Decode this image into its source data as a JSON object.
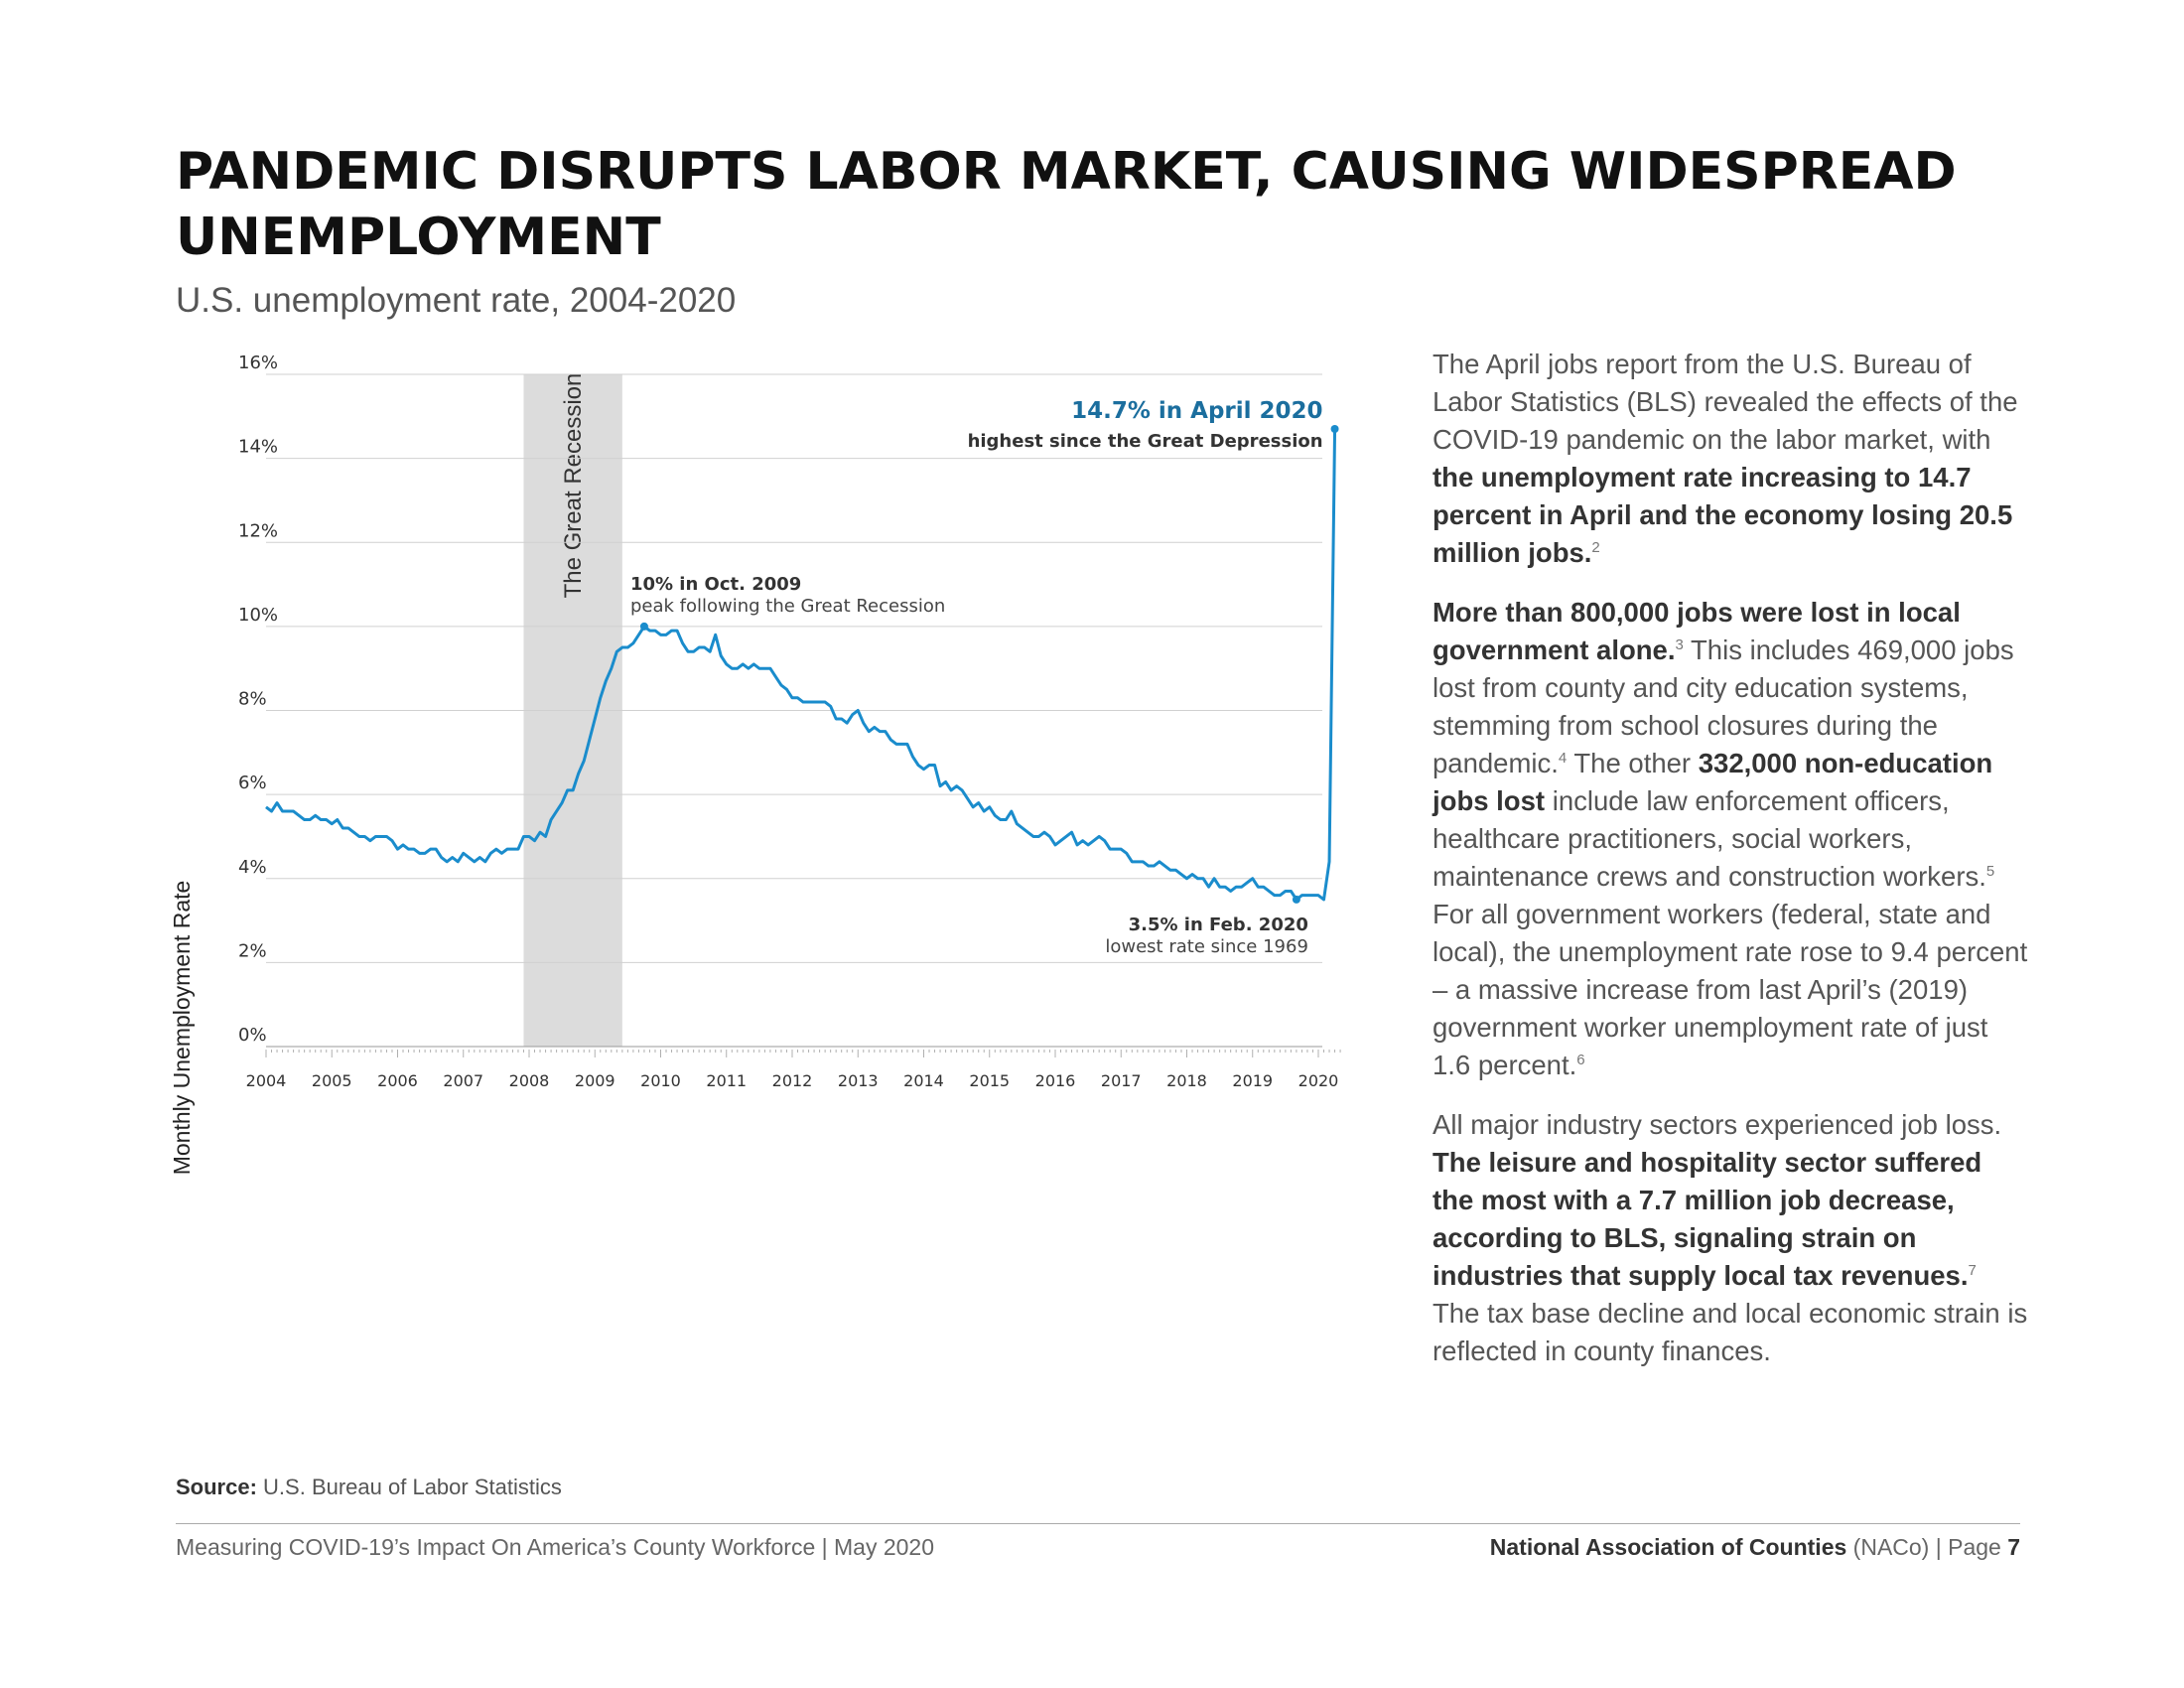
{
  "header": {
    "title": "PANDEMIC DISRUPTS LABOR MARKET, CAUSING WIDESPREAD UNEMPLOYMENT",
    "subtitle": "U.S. unemployment rate, 2004-2020"
  },
  "chart_data": {
    "type": "line",
    "title": "U.S. unemployment rate, 2004-2020",
    "ylabel": "Monthly Unemployment Rate",
    "xlabel": "",
    "ylim": [
      0,
      16
    ],
    "y_ticks": [
      "0%",
      "2%",
      "4%",
      "6%",
      "8%",
      "10%",
      "12%",
      "14%",
      "16%"
    ],
    "x_ticks": [
      "2004",
      "2005",
      "2006",
      "2007",
      "2008",
      "2009",
      "2010",
      "2011",
      "2012",
      "2013",
      "2014",
      "2015",
      "2016",
      "2017",
      "2018",
      "2019",
      "2020"
    ],
    "grid": true,
    "color": "#1a8ccc",
    "shaded_region": {
      "label": "The Great Recession",
      "start": "2007-12",
      "end": "2009-06"
    },
    "series": [
      {
        "x_start": "2004-01",
        "frequency": "monthly",
        "values": [
          5.7,
          5.6,
          5.8,
          5.6,
          5.6,
          5.6,
          5.5,
          5.4,
          5.4,
          5.5,
          5.4,
          5.4,
          5.3,
          5.4,
          5.2,
          5.2,
          5.1,
          5.0,
          5.0,
          4.9,
          5.0,
          5.0,
          5.0,
          4.9,
          4.7,
          4.8,
          4.7,
          4.7,
          4.6,
          4.6,
          4.7,
          4.7,
          4.5,
          4.4,
          4.5,
          4.4,
          4.6,
          4.5,
          4.4,
          4.5,
          4.4,
          4.6,
          4.7,
          4.6,
          4.7,
          4.7,
          4.7,
          5.0,
          5.0,
          4.9,
          5.1,
          5.0,
          5.4,
          5.6,
          5.8,
          6.1,
          6.1,
          6.5,
          6.8,
          7.3,
          7.8,
          8.3,
          8.7,
          9.0,
          9.4,
          9.5,
          9.5,
          9.6,
          9.8,
          10.0,
          9.9,
          9.9,
          9.8,
          9.8,
          9.9,
          9.9,
          9.6,
          9.4,
          9.4,
          9.5,
          9.5,
          9.4,
          9.8,
          9.3,
          9.1,
          9.0,
          9.0,
          9.1,
          9.0,
          9.1,
          9.0,
          9.0,
          9.0,
          8.8,
          8.6,
          8.5,
          8.3,
          8.3,
          8.2,
          8.2,
          8.2,
          8.2,
          8.2,
          8.1,
          7.8,
          7.8,
          7.7,
          7.9,
          8.0,
          7.7,
          7.5,
          7.6,
          7.5,
          7.5,
          7.3,
          7.2,
          7.2,
          7.2,
          6.9,
          6.7,
          6.6,
          6.7,
          6.7,
          6.2,
          6.3,
          6.1,
          6.2,
          6.1,
          5.9,
          5.7,
          5.8,
          5.6,
          5.7,
          5.5,
          5.4,
          5.4,
          5.6,
          5.3,
          5.2,
          5.1,
          5.0,
          5.0,
          5.1,
          5.0,
          4.8,
          4.9,
          5.0,
          5.1,
          4.8,
          4.9,
          4.8,
          4.9,
          5.0,
          4.9,
          4.7,
          4.7,
          4.7,
          4.6,
          4.4,
          4.4,
          4.4,
          4.3,
          4.3,
          4.4,
          4.3,
          4.2,
          4.2,
          4.1,
          4.0,
          4.1,
          4.0,
          4.0,
          3.8,
          4.0,
          3.8,
          3.8,
          3.7,
          3.8,
          3.8,
          3.9,
          4.0,
          3.8,
          3.8,
          3.7,
          3.6,
          3.6,
          3.7,
          3.7,
          3.5,
          3.6,
          3.6,
          3.6,
          3.6,
          3.5,
          4.4,
          14.7
        ]
      }
    ],
    "annotations": [
      {
        "bold": "10% in Oct. 2009",
        "text": "peak following the Great Recession"
      },
      {
        "bold": "14.7% in April 2020",
        "text": "highest since the Great Depression"
      },
      {
        "bold": "3.5% in Feb. 2020",
        "text": "lowest rate since 1969"
      }
    ]
  },
  "source": {
    "label": "Source:",
    "text": "U.S. Bureau of Labor Statistics"
  },
  "body": {
    "p1": {
      "a": "The April jobs report from the U.S. Bureau of Labor Statistics (BLS) revealed the effects of the COVID-19 pandemic on the labor market, with ",
      "b": "the unemployment rate increasing to 14.7 percent in April and the economy losing 20.5 million jobs.",
      "sup": "2"
    },
    "p2": {
      "b1": "More than 800,000 jobs were lost in local government alone.",
      "sup1": "3",
      "a1": " This includes 469,000 jobs lost from county and city education systems, stemming from school closures during the pandemic.",
      "sup2": "4",
      "a2": " The other ",
      "b2": "332,000 non-education jobs lost",
      "a3": " include law enforcement officers, healthcare practitioners, social workers, maintenance crews and construction workers.",
      "sup3": "5",
      "a4": " For all government workers (federal, state and local), the unemployment rate rose to 9.4 percent – a massive increase from last April’s (2019) government worker unemployment rate of just 1.6 percent.",
      "sup4": "6"
    },
    "p3": {
      "a1": "All major industry sectors experienced job loss. ",
      "b": "The leisure and hospitality sector suffered the most with a 7.7 million job decrease, according to BLS, signaling strain on industries that supply local tax revenues.",
      "sup": "7",
      "a2": " The tax base decline and local economic strain is reflected in county finances."
    }
  },
  "footer": {
    "left": "Measuring COVID-19’s Impact On America’s County Workforce | May 2020",
    "org": "National Association of Counties",
    "abbr": " (NACo) | Page ",
    "page": "7"
  }
}
